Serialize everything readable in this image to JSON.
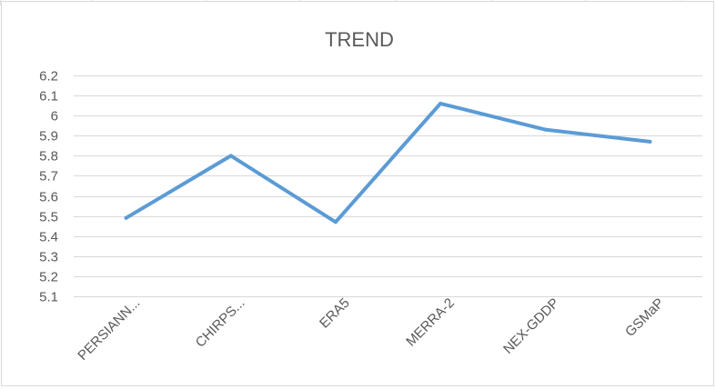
{
  "chart_data": {
    "type": "line",
    "title": "TREND",
    "categories": [
      "PERSIANN...",
      "CHIRPS...",
      "ERA5",
      "MERRA-2",
      "NEX-GDDP",
      "GSMaP"
    ],
    "series": [
      {
        "values": [
          5.49,
          5.8,
          5.47,
          6.06,
          5.93,
          5.87
        ]
      }
    ],
    "ylim": [
      5.1,
      6.2
    ],
    "yticks": [
      "6.2",
      "6.1",
      "6",
      "5.9",
      "5.8",
      "5.7",
      "5.6",
      "5.5",
      "5.4",
      "5.3",
      "5.2",
      "5.1"
    ],
    "grid": true,
    "legend": "none",
    "line_color": "#5b9bd5",
    "grid_color": "#d9d9d9"
  }
}
